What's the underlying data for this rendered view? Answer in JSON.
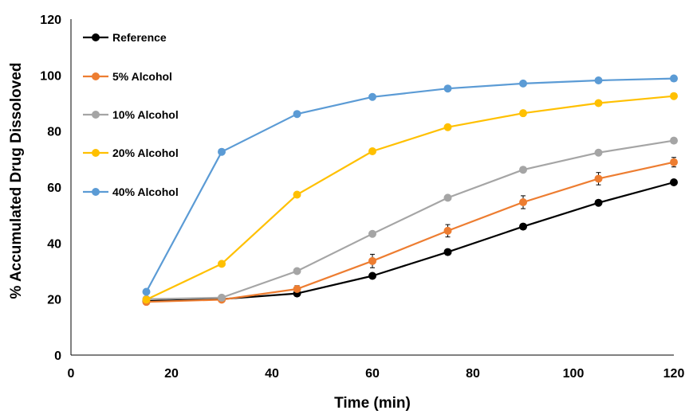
{
  "chart_data": {
    "type": "line",
    "title": "",
    "xlabel": "Time (min)",
    "ylabel": "% Accumulated Drug Dissoloved",
    "xlim": [
      0,
      120
    ],
    "ylim": [
      0,
      120
    ],
    "xticks": [
      0,
      20,
      40,
      60,
      80,
      100,
      120
    ],
    "yticks": [
      0,
      20,
      40,
      60,
      80,
      100,
      120
    ],
    "grid": false,
    "legend_position": "top-left",
    "x": [
      15,
      30,
      45,
      60,
      75,
      90,
      105,
      120
    ],
    "series": [
      {
        "name": "Reference",
        "color": "#000000",
        "values": [
          19.3,
          20.0,
          22.0,
          28.3,
          36.8,
          45.9,
          54.4,
          61.7
        ],
        "errors": [
          0,
          0,
          0,
          0,
          0,
          0,
          0,
          0
        ]
      },
      {
        "name": "5% Alcohol",
        "color": "#ED7D31",
        "values": [
          19.0,
          19.8,
          23.6,
          33.6,
          44.4,
          54.6,
          63.0,
          68.9
        ],
        "errors": [
          0.6,
          0.5,
          1.2,
          2.4,
          2.2,
          2.3,
          2.2,
          1.7
        ]
      },
      {
        "name": "10% Alcohol",
        "color": "#A5A5A5",
        "values": [
          20.0,
          20.5,
          30.0,
          43.3,
          56.2,
          66.2,
          72.3,
          76.6
        ],
        "errors": [
          0,
          0,
          0,
          0,
          0,
          0,
          0,
          0
        ]
      },
      {
        "name": "20% Alcohol",
        "color": "#FFC000",
        "values": [
          19.8,
          32.6,
          57.3,
          72.8,
          81.4,
          86.4,
          90.0,
          92.5
        ],
        "errors": [
          0,
          0,
          0,
          0,
          0,
          0,
          0,
          0
        ]
      },
      {
        "name": "40% Alcohol",
        "color": "#5B9BD5",
        "values": [
          22.6,
          72.6,
          86.1,
          92.2,
          95.2,
          97.0,
          98.1,
          98.8
        ],
        "errors": [
          0,
          0,
          0,
          0,
          0,
          0,
          0,
          0
        ]
      }
    ]
  }
}
